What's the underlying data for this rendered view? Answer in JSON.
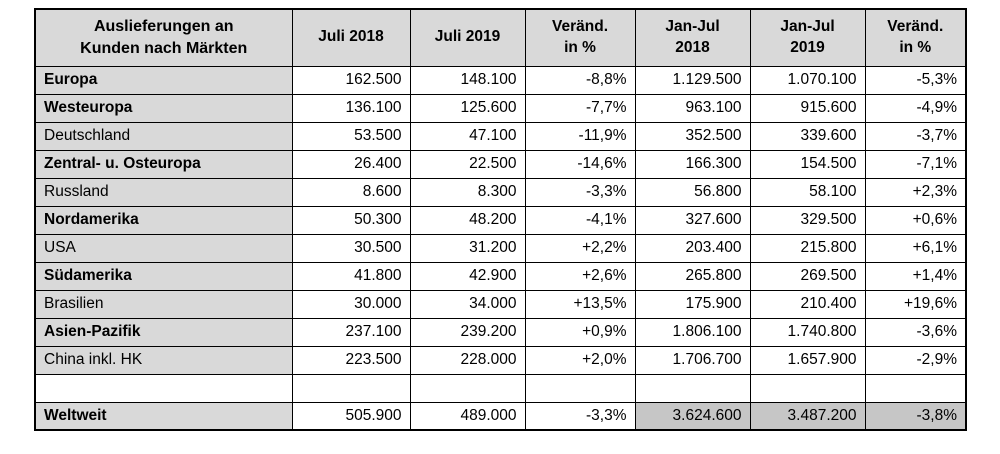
{
  "chart_data": {
    "type": "table",
    "title": "Auslieferungen an\nKunden nach Märkten",
    "columns": [
      "Juli 2018",
      "Juli 2019",
      "Veränd.\nin %",
      "Jan-Jul\n2018",
      "Jan-Jul\n2019",
      "Veränd.\nin %"
    ],
    "rows": [
      {
        "label": "Europa",
        "bold": true,
        "values": [
          "162.500",
          "148.100",
          "-8,8%",
          "1.129.500",
          "1.070.100",
          "-5,3%"
        ]
      },
      {
        "label": "Westeuropa",
        "bold": true,
        "values": [
          "136.100",
          "125.600",
          "-7,7%",
          "963.100",
          "915.600",
          "-4,9%"
        ]
      },
      {
        "label": "Deutschland",
        "bold": false,
        "values": [
          "53.500",
          "47.100",
          "-11,9%",
          "352.500",
          "339.600",
          "-3,7%"
        ]
      },
      {
        "label": "Zentral- u. Osteuropa",
        "bold": true,
        "values": [
          "26.400",
          "22.500",
          "-14,6%",
          "166.300",
          "154.500",
          "-7,1%"
        ]
      },
      {
        "label": "Russland",
        "bold": false,
        "values": [
          "8.600",
          "8.300",
          "-3,3%",
          "56.800",
          "58.100",
          "+2,3%"
        ]
      },
      {
        "label": "Nordamerika",
        "bold": true,
        "values": [
          "50.300",
          "48.200",
          "-4,1%",
          "327.600",
          "329.500",
          "+0,6%"
        ]
      },
      {
        "label": "USA",
        "bold": false,
        "values": [
          "30.500",
          "31.200",
          "+2,2%",
          "203.400",
          "215.800",
          "+6,1%"
        ]
      },
      {
        "label": "Südamerika",
        "bold": true,
        "values": [
          "41.800",
          "42.900",
          "+2,6%",
          "265.800",
          "269.500",
          "+1,4%"
        ]
      },
      {
        "label": "Brasilien",
        "bold": false,
        "values": [
          "30.000",
          "34.000",
          "+13,5%",
          "175.900",
          "210.400",
          "+19,6%"
        ]
      },
      {
        "label": "Asien-Pazifik",
        "bold": true,
        "values": [
          "237.100",
          "239.200",
          "+0,9%",
          "1.806.100",
          "1.740.800",
          "-3,6%"
        ]
      },
      {
        "label": "China inkl. HK",
        "bold": false,
        "values": [
          "223.500",
          "228.000",
          "+2,0%",
          "1.706.700",
          "1.657.900",
          "-2,9%"
        ]
      },
      {
        "label": "",
        "bold": false,
        "empty": true,
        "values": [
          "",
          "",
          "",
          "",
          "",
          ""
        ]
      },
      {
        "label": "Weltweit",
        "bold": true,
        "shaded_from": 3,
        "values": [
          "505.900",
          "489.000",
          "-3,3%",
          "3.624.600",
          "3.487.200",
          "-3,8%"
        ]
      }
    ]
  },
  "colors": {
    "header_bg": "#d9d9d9",
    "label_bg": "#d9d9d9",
    "shaded_bg": "#c6c6c6",
    "border": "#000000"
  }
}
